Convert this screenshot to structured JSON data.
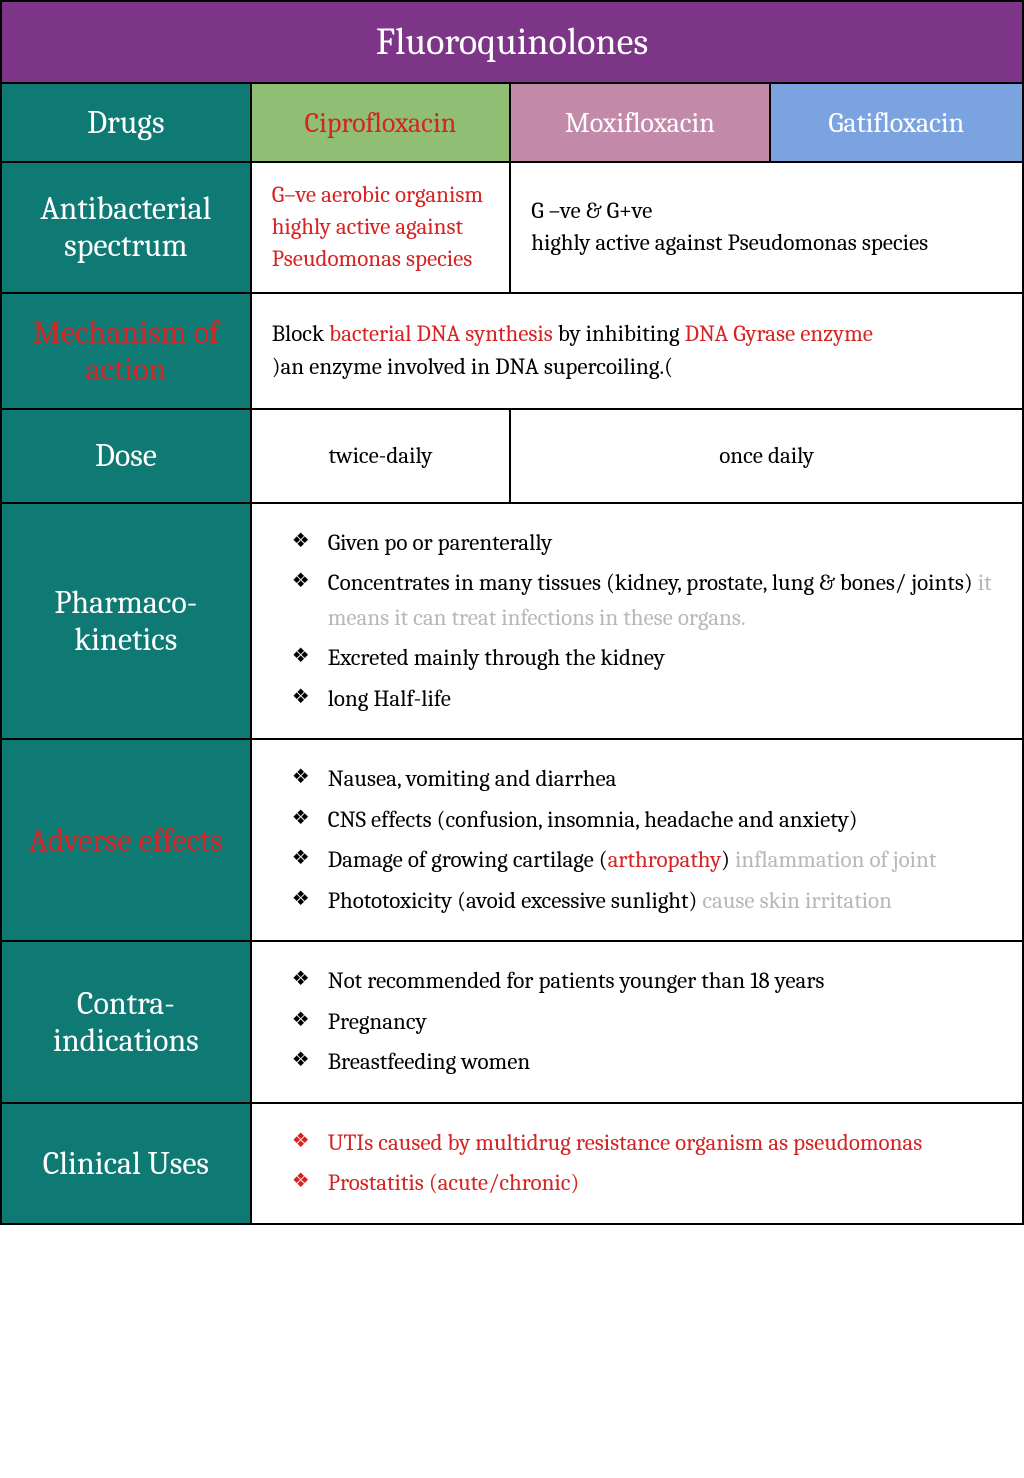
{
  "title": "Fluoroquinolones",
  "headers": {
    "drugs": "Drugs",
    "cipro": "Ciprofloxacin",
    "moxi": "Moxifloxacin",
    "gati": "Gatifloxacin"
  },
  "rows": {
    "spectrum": {
      "label": "Antibacterial spectrum",
      "cipro": "G–ve aerobic organism highly active against Pseudomonas  species",
      "others": "G –ve & G+ve\nhighly active against Pseudomonas species"
    },
    "mechanism": {
      "label": "Mechanism of action",
      "pre": "Block ",
      "red1": "bacterial DNA synthesis",
      "mid": " by inhibiting ",
      "red2": "DNA Gyrase enzyme",
      "post": "\n)an enzyme involved in DNA supercoiling.("
    },
    "dose": {
      "label": "Dose",
      "cipro": "twice-daily",
      "others": "once daily"
    },
    "pk": {
      "label": "Pharmaco-kinetics",
      "items": [
        {
          "text": "Given po or parenterally"
        },
        {
          "text": "Concentrates in many tissues (kidney, prostate, lung & bones/ joints) ",
          "gray": "it  means it can treat infections in these organs."
        },
        {
          "text": "Excreted mainly through the kidney"
        },
        {
          "text": "long Half-life"
        }
      ]
    },
    "adverse": {
      "label": "Adverse effects",
      "items": [
        {
          "text": "Nausea, vomiting and diarrhea"
        },
        {
          "text": "CNS effects (confusion, insomnia, headache and anxiety)"
        },
        {
          "text": "Damage of growing cartilage (",
          "red": "arthropathy",
          "after": ") ",
          "gray": "inflammation of joint"
        },
        {
          "text": "Phototoxicity (avoid excessive sunlight) ",
          "gray": "cause skin irritation"
        }
      ]
    },
    "contra": {
      "label": "Contra-indications",
      "items": [
        {
          "text": "Not recommended for patients younger than 18 years"
        },
        {
          "text": "Pregnancy"
        },
        {
          "text": "Breastfeeding women"
        }
      ]
    },
    "uses": {
      "label": "Clinical Uses",
      "items": [
        {
          "text": "UTIs caused by multidrug resistance organism as pseudomonas"
        },
        {
          "text": "Prostatitis (acute/chronic)"
        }
      ]
    }
  },
  "colors": {
    "purple": "#7c3587",
    "teal": "#0f7a74",
    "green": "#8fbe74",
    "pink": "#c289a8",
    "blue": "#7ba3e0",
    "red": "#d62424",
    "gray": "#b8b8b8"
  }
}
